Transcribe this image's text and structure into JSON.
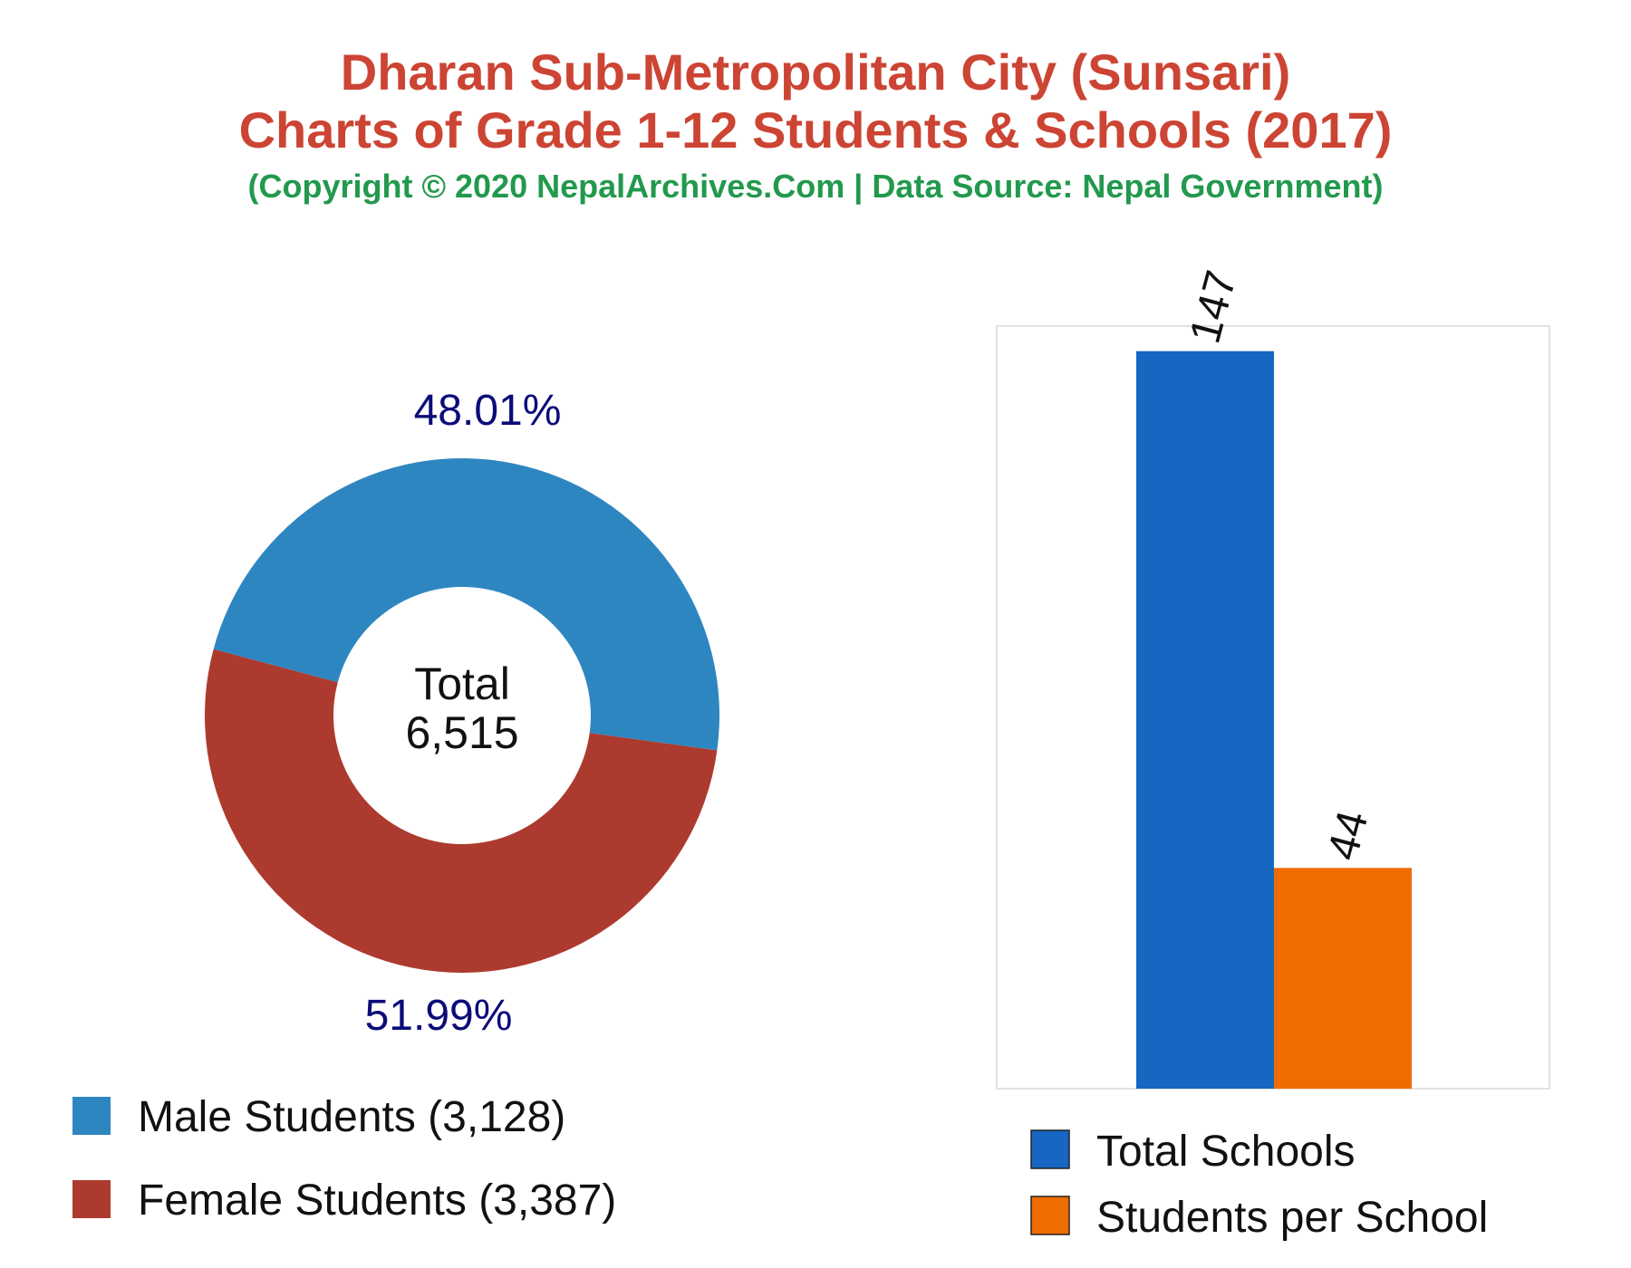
{
  "title": {
    "line1": "Dharan Sub-Metropolitan City (Sunsari)",
    "line2": "Charts of Grade 1-12 Students & Schools (2017)",
    "subtitle": "(Copyright © 2020 NepalArchives.Com | Data Source: Nepal Government)"
  },
  "chart_data": [
    {
      "type": "pie",
      "subtype": "donut",
      "center_label": "Total",
      "center_value": "6,515",
      "slices": [
        {
          "legend": "Male Students (3,128)",
          "value": 3128,
          "percent_label": "48.01%",
          "color": "#2e86c1"
        },
        {
          "legend": "Female Students (3,387)",
          "value": 3387,
          "percent_label": "51.99%",
          "color": "#ad3a2f"
        }
      ]
    },
    {
      "type": "bar",
      "categories": [
        "Total Schools",
        "Students per School"
      ],
      "values": [
        147,
        44
      ],
      "value_labels": [
        "147",
        "44"
      ],
      "colors": [
        "#1766c2",
        "#ef6c00"
      ],
      "ylim": [
        0,
        152
      ],
      "legend": [
        "Total Schools",
        "Students per School"
      ],
      "legend_position": "bottom",
      "grid": false
    }
  ]
}
